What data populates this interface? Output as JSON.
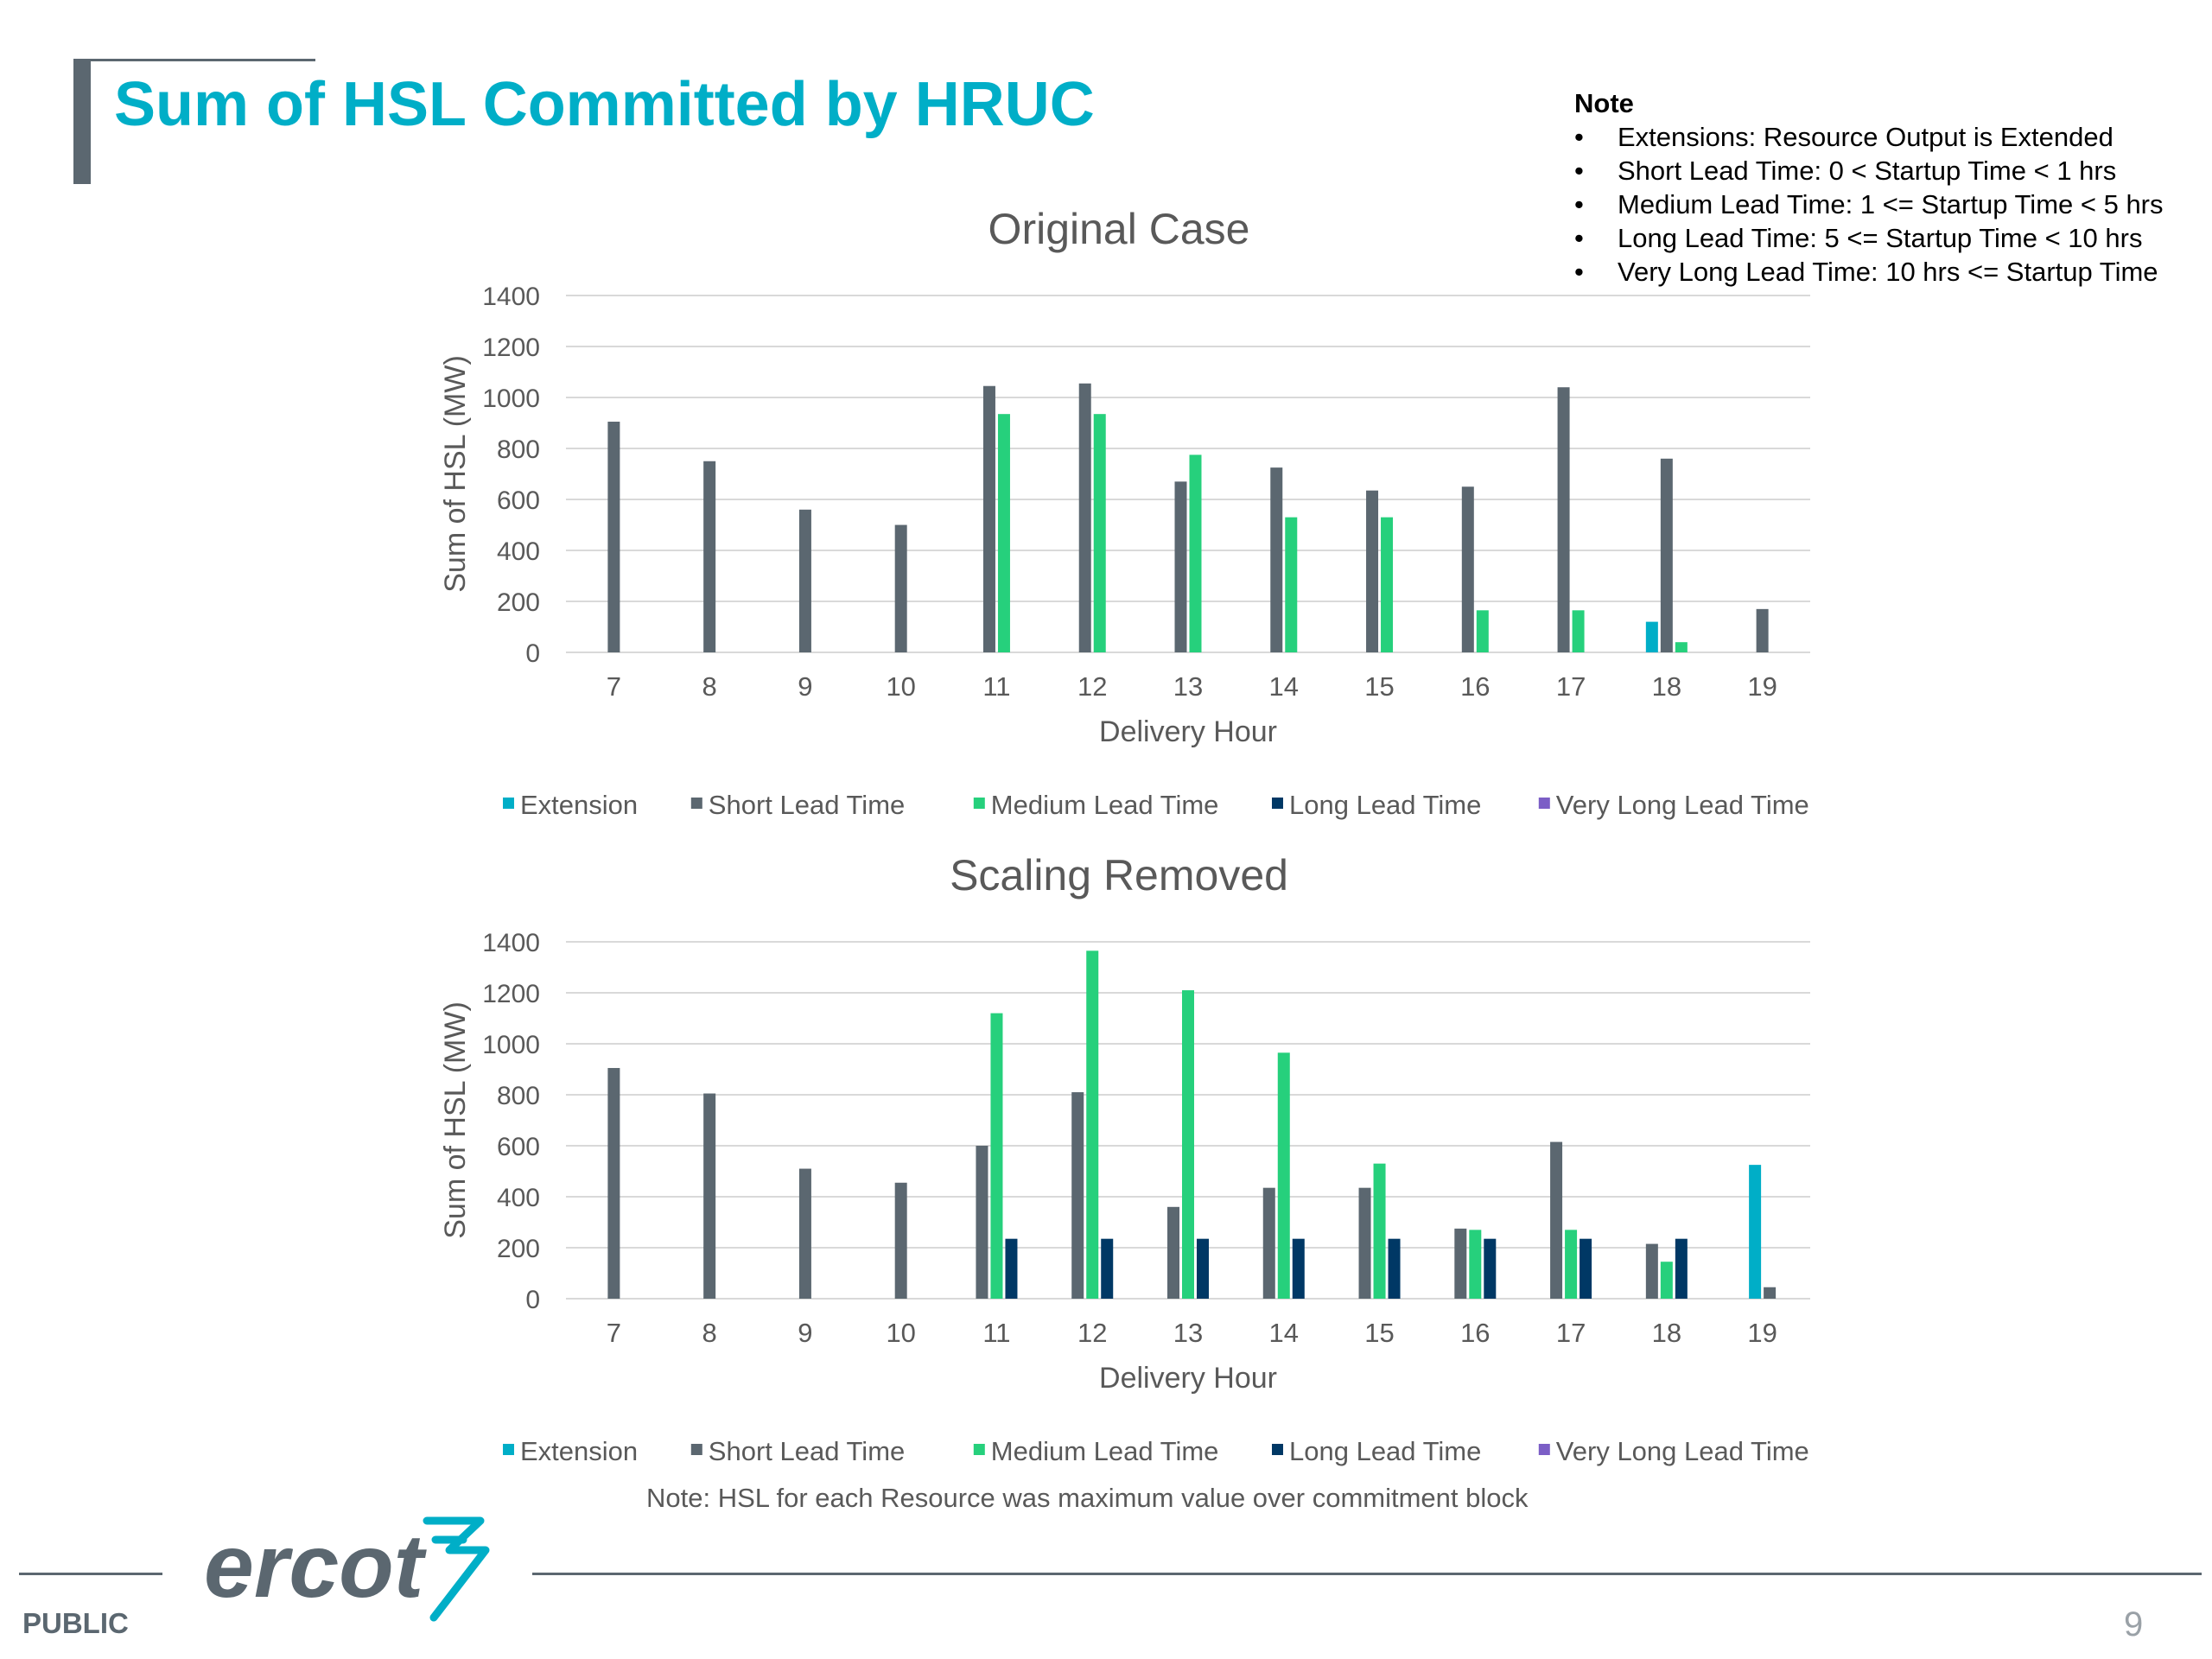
{
  "page": {
    "title": "Sum of HSL Committed by HRUC",
    "footnote": "Note: HSL for each Resource was maximum value over commitment block",
    "public_label": "PUBLIC",
    "page_number": "9",
    "logo_text": "ercot"
  },
  "note": {
    "heading": "Note",
    "items": [
      "Extensions: Resource Output is Extended",
      "Short Lead Time: 0 < Startup Time < 1 hrs",
      "Medium Lead Time: 1 <= Startup Time < 5 hrs",
      "Long Lead Time: 5 <= Startup Time < 10 hrs",
      "Very Long Lead Time: 10 hrs <= Startup Time"
    ]
  },
  "colors": {
    "title": "#00aec7",
    "Extension": "#00aec7",
    "Short Lead Time": "#5b6770",
    "Medium Lead Time": "#26d07c",
    "Long Lead Time": "#003865",
    "Very Long Lead Time": "#7b5ec6"
  },
  "chart_data": [
    {
      "type": "bar",
      "title": "Original Case",
      "xlabel": "Delivery Hour",
      "ylabel": "Sum of HSL (MW)",
      "ylim": [
        0,
        1400
      ],
      "yticks": [
        0,
        200,
        400,
        600,
        800,
        1000,
        1200,
        1400
      ],
      "grid": true,
      "legend_position": "bottom",
      "categories": [
        "7",
        "8",
        "9",
        "10",
        "11",
        "12",
        "13",
        "14",
        "15",
        "16",
        "17",
        "18",
        "19"
      ],
      "series": [
        {
          "name": "Extension",
          "values": [
            0,
            0,
            0,
            0,
            0,
            0,
            0,
            0,
            0,
            0,
            0,
            120,
            0
          ]
        },
        {
          "name": "Short Lead Time",
          "values": [
            905,
            750,
            560,
            500,
            1045,
            1055,
            670,
            725,
            635,
            650,
            1040,
            760,
            170
          ]
        },
        {
          "name": "Medium Lead Time",
          "values": [
            0,
            0,
            0,
            0,
            935,
            935,
            775,
            530,
            530,
            165,
            165,
            40,
            0
          ]
        },
        {
          "name": "Long Lead Time",
          "values": [
            0,
            0,
            0,
            0,
            0,
            0,
            0,
            0,
            0,
            0,
            0,
            0,
            0
          ]
        },
        {
          "name": "Very Long Lead Time",
          "values": [
            0,
            0,
            0,
            0,
            0,
            0,
            0,
            0,
            0,
            0,
            0,
            0,
            0
          ]
        }
      ]
    },
    {
      "type": "bar",
      "title": "Scaling Removed",
      "xlabel": "Delivery Hour",
      "ylabel": "Sum of HSL (MW)",
      "ylim": [
        0,
        1400
      ],
      "yticks": [
        0,
        200,
        400,
        600,
        800,
        1000,
        1200,
        1400
      ],
      "grid": true,
      "legend_position": "bottom",
      "categories": [
        "7",
        "8",
        "9",
        "10",
        "11",
        "12",
        "13",
        "14",
        "15",
        "16",
        "17",
        "18",
        "19"
      ],
      "series": [
        {
          "name": "Extension",
          "values": [
            0,
            0,
            0,
            0,
            0,
            0,
            0,
            0,
            0,
            0,
            0,
            0,
            525
          ]
        },
        {
          "name": "Short Lead Time",
          "values": [
            905,
            805,
            510,
            455,
            600,
            810,
            360,
            435,
            435,
            275,
            615,
            215,
            45
          ]
        },
        {
          "name": "Medium Lead Time",
          "values": [
            0,
            0,
            0,
            0,
            1120,
            1365,
            1210,
            965,
            530,
            270,
            270,
            145,
            0
          ]
        },
        {
          "name": "Long Lead Time",
          "values": [
            0,
            0,
            0,
            0,
            235,
            235,
            235,
            235,
            235,
            235,
            235,
            235,
            0
          ]
        },
        {
          "name": "Very Long Lead Time",
          "values": [
            0,
            0,
            0,
            0,
            0,
            0,
            0,
            0,
            0,
            0,
            0,
            0,
            0
          ]
        }
      ]
    }
  ]
}
